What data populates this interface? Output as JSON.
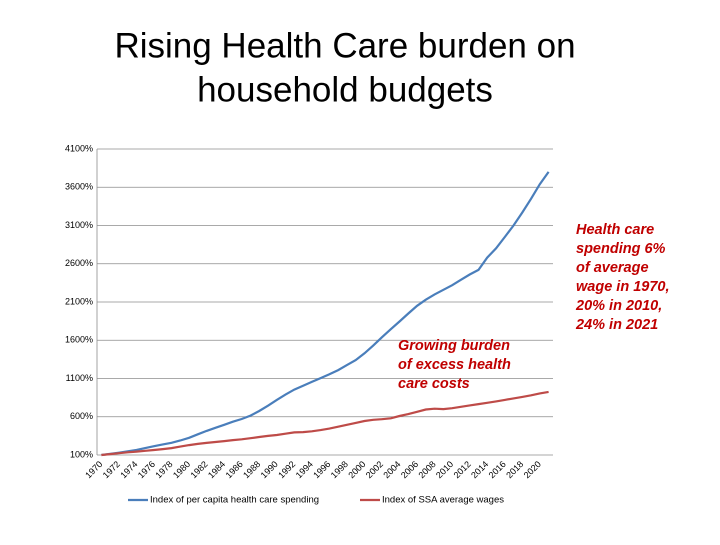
{
  "chart_data": {
    "type": "line",
    "title": [
      "Rising Health Care burden on",
      "household budgets"
    ],
    "categories": [
      "1970",
      null,
      "1972",
      null,
      "1974",
      null,
      "1976",
      null,
      "1978",
      null,
      "1980",
      null,
      "1982",
      null,
      "1984",
      null,
      "1986",
      null,
      "1988",
      null,
      "1990",
      null,
      "1992",
      null,
      "1994",
      null,
      "1996",
      null,
      "1998",
      null,
      "2000",
      null,
      "2002",
      null,
      "2004",
      null,
      "2006",
      null,
      "2008",
      null,
      "2010",
      null,
      "2012",
      null,
      "2014",
      null,
      "2016",
      null,
      "2018",
      null,
      "2020",
      null
    ],
    "series": [
      {
        "name": "Index of per capita health care spending",
        "color": "#4a7ebb",
        "values": [
          100,
          115,
          130,
          148,
          165,
          190,
          215,
          238,
          260,
          290,
          325,
          370,
          415,
          455,
          495,
          535,
          570,
          615,
          675,
          745,
          820,
          890,
          955,
          1005,
          1055,
          1105,
          1155,
          1210,
          1275,
          1340,
          1430,
          1530,
          1640,
          1745,
          1845,
          1950,
          2050,
          2130,
          2200,
          2260,
          2320,
          2390,
          2460,
          2520,
          2680,
          2800,
          2950,
          3100,
          3270,
          3450,
          3640,
          3800
        ]
      },
      {
        "name": "Index of SSA average wages",
        "color": "#be4b48",
        "values": [
          100,
          112,
          124,
          135,
          145,
          155,
          165,
          177,
          190,
          210,
          230,
          245,
          258,
          270,
          282,
          295,
          305,
          320,
          335,
          350,
          362,
          378,
          395,
          400,
          410,
          425,
          445,
          470,
          495,
          520,
          545,
          560,
          568,
          580,
          610,
          635,
          665,
          695,
          705,
          700,
          712,
          730,
          748,
          765,
          782,
          800,
          820,
          840,
          860,
          880,
          905,
          925
        ]
      }
    ],
    "ylim": [
      100,
      4100
    ],
    "yticks": [
      {
        "value": 100,
        "label": "100%"
      },
      {
        "value": 600,
        "label": "600%"
      },
      {
        "value": 1100,
        "label": "1100%"
      },
      {
        "value": 1600,
        "label": "1600%"
      },
      {
        "value": 2100,
        "label": "2100%"
      },
      {
        "value": 2600,
        "label": "2600%"
      },
      {
        "value": 3100,
        "label": "3100%"
      },
      {
        "value": 3600,
        "label": "3600%"
      },
      {
        "value": 4100,
        "label": "4100%"
      }
    ],
    "grid": true,
    "legend": "bottom",
    "annotations": [
      {
        "lines": [
          "Health care",
          "spending 6%",
          "of average",
          "wage in 1970,",
          "20% in 2010,",
          "24% in 2021"
        ],
        "color": "#c00000"
      },
      {
        "lines": [
          "Growing burden",
          "of excess health",
          "care costs"
        ],
        "color": "#c00000"
      }
    ]
  }
}
